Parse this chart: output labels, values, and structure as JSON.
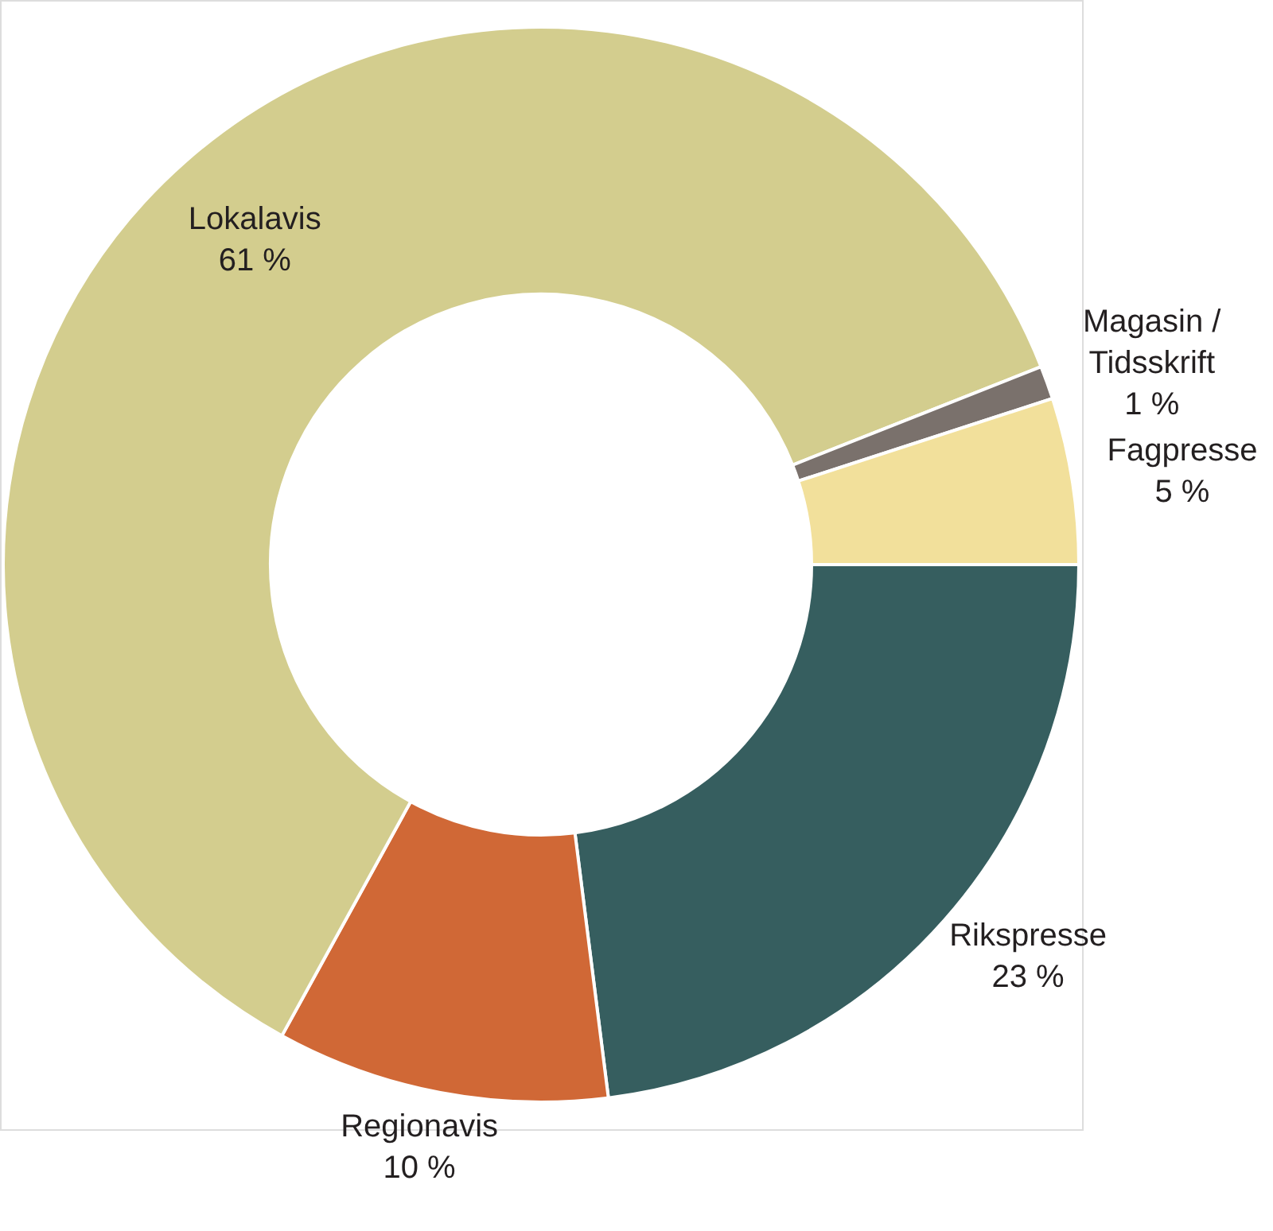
{
  "chart_data": {
    "type": "donut",
    "categories": [
      "Rikspresse",
      "Regionavis",
      "Lokalavis",
      "Magasin / Tidsskrift",
      "Fagpresse"
    ],
    "values": [
      23,
      10,
      61,
      1,
      5
    ],
    "colors": [
      "#365e5f",
      "#d06836",
      "#d3cd8e",
      "#7a716c",
      "#f2e09b"
    ],
    "value_labels": [
      "23 %",
      "10 %",
      "61 %",
      "1 %",
      "5 %"
    ],
    "legend": false
  }
}
